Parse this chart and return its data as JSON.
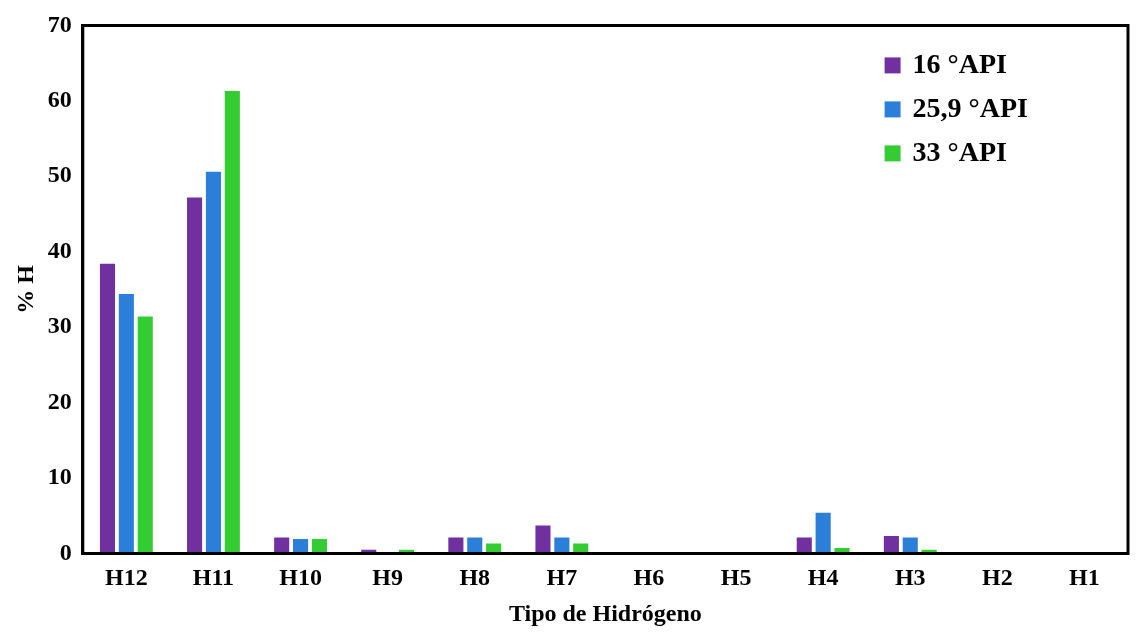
{
  "chart_data": {
    "type": "bar",
    "xlabel": "Tipo de Hidrógeno",
    "ylabel": "% H",
    "categories": [
      "H12",
      "H11",
      "H10",
      "H9",
      "H8",
      "H7",
      "H6",
      "H5",
      "H4",
      "H3",
      "H2",
      "H1"
    ],
    "series": [
      {
        "name": "16 °API",
        "color": "#7030a0",
        "values": [
          38.4,
          47.2,
          2.1,
          0.5,
          2.1,
          3.7,
          0,
          0,
          2.1,
          2.3,
          0,
          0
        ]
      },
      {
        "name": "25,9 °API",
        "color": "#2b7fd9",
        "values": [
          34.4,
          50.6,
          1.9,
          0,
          2.1,
          2.1,
          0,
          0,
          5.4,
          2.1,
          0,
          0
        ]
      },
      {
        "name": "33 °API",
        "color": "#33cc33",
        "values": [
          31.4,
          61.3,
          1.9,
          0.5,
          1.3,
          1.3,
          0,
          0,
          0.7,
          0.5,
          0,
          0
        ]
      }
    ],
    "ylim": [
      0,
      70
    ],
    "yticks": [
      0,
      10,
      20,
      30,
      40,
      50,
      60,
      70
    ],
    "grid": false,
    "legend": "top right"
  }
}
